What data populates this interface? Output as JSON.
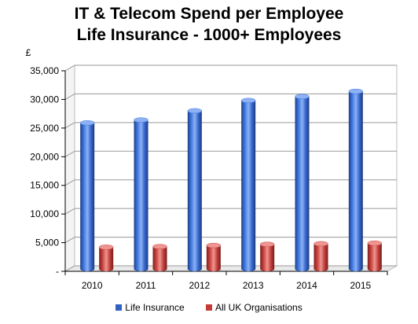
{
  "chart_data": {
    "type": "bar",
    "title": "IT & Telecom Spend per Employee",
    "subtitle": "Life Insurance - 1000+ Employees",
    "ylabel": "£",
    "xlabel": "",
    "categories": [
      "2010",
      "2011",
      "2012",
      "2013",
      "2014",
      "2015"
    ],
    "series": [
      {
        "name": "Life Insurance",
        "color": "#2E61C2",
        "values": [
          25500,
          26000,
          27600,
          29400,
          30100,
          31000
        ]
      },
      {
        "name": "All UK Organisations",
        "color": "#C43A36",
        "values": [
          3800,
          3900,
          4100,
          4300,
          4400,
          4500
        ]
      }
    ],
    "ylim": [
      0,
      35000
    ],
    "yticks": [
      0,
      5000,
      10000,
      15000,
      20000,
      25000,
      30000,
      35000
    ],
    "ytick_labels": [
      "-",
      "5,000",
      "10,000",
      "15,000",
      "20,000",
      "25,000",
      "30,000",
      "35,000"
    ],
    "grid": true,
    "legend_position": "bottom",
    "style": "3d-cylinder"
  }
}
